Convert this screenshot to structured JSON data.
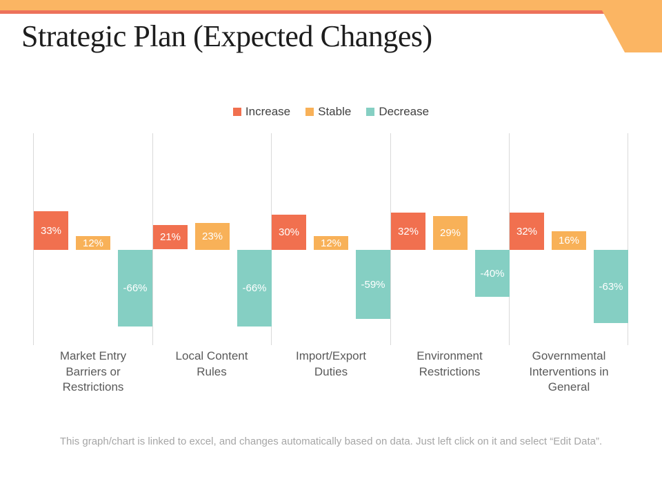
{
  "slide": {
    "title": "Strategic Plan (Expected Changes)",
    "footnote": "This graph/chart is linked to excel, and changes automatically based on data. Just left click on it and select “Edit Data”.",
    "accent_colors": {
      "top_bar_orange": "#FBB563",
      "underline_coral": "#ED725B"
    }
  },
  "chart_data": {
    "type": "bar",
    "title": "",
    "categories": [
      "Market Entry Barriers or Restrictions",
      "Local Content Rules",
      "Import/Export Duties",
      "Environment Restrictions",
      "Governmental Interventions in General"
    ],
    "series": [
      {
        "name": "Increase",
        "color": "#F1704F",
        "values": [
          33,
          21,
          30,
          32,
          32
        ]
      },
      {
        "name": "Stable",
        "color": "#F8B158",
        "values": [
          12,
          23,
          12,
          29,
          16
        ]
      },
      {
        "name": "Decrease",
        "color": "#85CFC3",
        "values": [
          -66,
          -66,
          -59,
          -40,
          -63
        ]
      }
    ],
    "value_suffix": "%",
    "data_labels": "inside-center-white",
    "xlabel": "",
    "ylabel": "",
    "ylim": [
      -80,
      100
    ],
    "grid": "vertical-only",
    "legend_position": "top-center",
    "label_colors": {
      "category": "#595959",
      "legend": "#404040",
      "footnote": "#A6A6A6",
      "gridline": "#D9D9D9"
    }
  }
}
